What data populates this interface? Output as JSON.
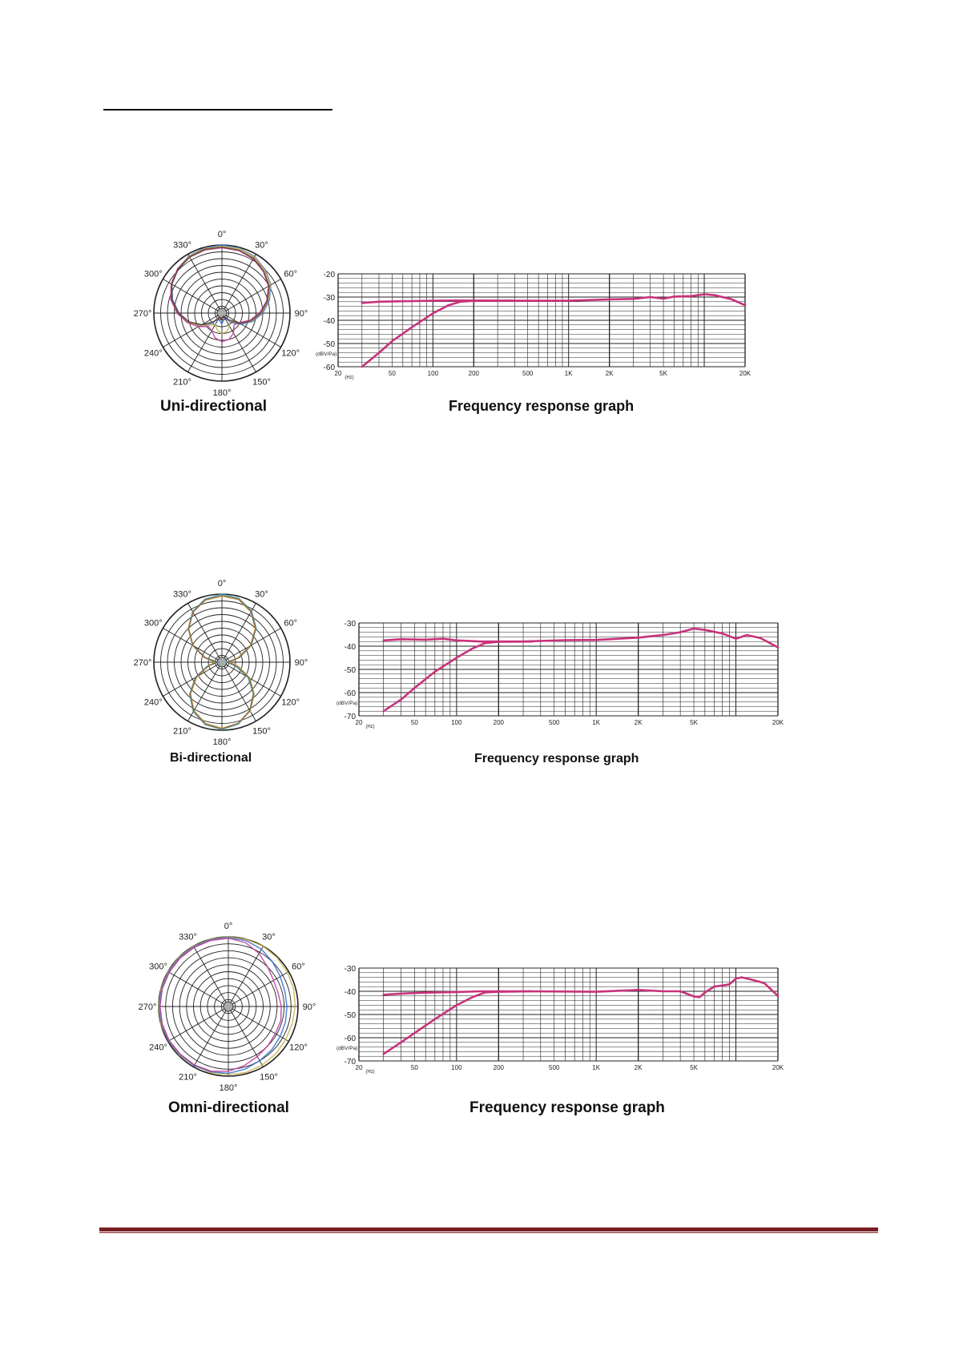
{
  "chart_data": [
    {
      "type": "polar",
      "caption": "Uni-directional",
      "angle_labels": [
        "0°",
        "30°",
        "60°",
        "90°",
        "120°",
        "150°",
        "180°",
        "210°",
        "240°",
        "270°",
        "300°",
        "330°"
      ],
      "series": [
        {
          "color": "#3a6fd0",
          "r": [
            1.0,
            0.99,
            0.96,
            0.9,
            0.83,
            0.72,
            0.6,
            0.47,
            0.33,
            0.2,
            0.08,
            0.1,
            0.16,
            0.12,
            0.1,
            0.22,
            0.36,
            0.5,
            0.63,
            0.75,
            0.85,
            0.92,
            0.97,
            0.99,
            1.0
          ]
        },
        {
          "color": "#c8b34a",
          "r": [
            0.98,
            0.98,
            0.95,
            0.89,
            0.82,
            0.7,
            0.58,
            0.45,
            0.3,
            0.16,
            0.22,
            0.28,
            0.3,
            0.26,
            0.2,
            0.25,
            0.38,
            0.52,
            0.65,
            0.77,
            0.86,
            0.92,
            0.96,
            0.98,
            0.98
          ]
        },
        {
          "color": "#c03a9c",
          "r": [
            0.96,
            0.95,
            0.92,
            0.86,
            0.79,
            0.68,
            0.55,
            0.42,
            0.28,
            0.25,
            0.34,
            0.4,
            0.42,
            0.38,
            0.3,
            0.28,
            0.4,
            0.53,
            0.66,
            0.78,
            0.86,
            0.92,
            0.95,
            0.96,
            0.96
          ]
        },
        {
          "color": "#5a3a20",
          "r": [
            0.97,
            0.96,
            0.93,
            0.87,
            0.8,
            0.69,
            0.57,
            0.44,
            0.3,
            0.14,
            0.05,
            0.06,
            0.1,
            0.08,
            0.07,
            0.18,
            0.34,
            0.5,
            0.64,
            0.76,
            0.85,
            0.91,
            0.95,
            0.97,
            0.97
          ]
        }
      ]
    },
    {
      "type": "line",
      "caption": "Frequency response graph",
      "y_ticks": [
        "-20",
        "-30",
        "-40",
        "-50",
        "-60"
      ],
      "ylim": [
        -60,
        -20
      ],
      "y_unit_label": "(dBV/Pa)",
      "x_unit_label": "(Hz)",
      "x_ticks": [
        {
          "f": 20,
          "label": "20"
        },
        {
          "f": 50,
          "label": "50"
        },
        {
          "f": 100,
          "label": "100"
        },
        {
          "f": 200,
          "label": "200"
        },
        {
          "f": 500,
          "label": "500"
        },
        {
          "f": 1000,
          "label": "1K"
        },
        {
          "f": 2000,
          "label": "2K"
        },
        {
          "f": 5000,
          "label": "5K"
        },
        {
          "f": 20000,
          "label": "20K"
        }
      ],
      "series": [
        {
          "points": [
            [
              30,
              -32.5
            ],
            [
              40,
              -32
            ],
            [
              60,
              -31.8
            ],
            [
              100,
              -31.6
            ],
            [
              150,
              -31.5
            ],
            [
              300,
              -31.6
            ],
            [
              1000,
              -31.6
            ],
            [
              2000,
              -31
            ],
            [
              3000,
              -30.8
            ],
            [
              4000,
              -30
            ],
            [
              5000,
              -30.7
            ],
            [
              6000,
              -29.8
            ],
            [
              8000,
              -29.6
            ],
            [
              10000,
              -28.8
            ],
            [
              12000,
              -29.2
            ],
            [
              16000,
              -31
            ],
            [
              20000,
              -33.5
            ]
          ]
        },
        {
          "points": [
            [
              30,
              -60
            ],
            [
              40,
              -54
            ],
            [
              50,
              -49
            ],
            [
              70,
              -43
            ],
            [
              100,
              -37
            ],
            [
              130,
              -33.5
            ],
            [
              160,
              -32
            ],
            [
              200,
              -31.6
            ],
            [
              400,
              -31.6
            ]
          ]
        }
      ]
    },
    {
      "type": "polar",
      "caption": "Bi-directional",
      "angle_labels": [
        "0°",
        "30°",
        "60°",
        "90°",
        "120°",
        "150°",
        "180°",
        "210°",
        "240°",
        "270°",
        "300°",
        "330°"
      ],
      "series": [
        {
          "color": "#34a6c4",
          "r": [
            1.0,
            0.97,
            0.87,
            0.71,
            0.5,
            0.27,
            0.07,
            0.2,
            0.44,
            0.65,
            0.82,
            0.94,
            0.99,
            0.95,
            0.84,
            0.67,
            0.45,
            0.22,
            0.05,
            0.25,
            0.49,
            0.7,
            0.86,
            0.96,
            1.0
          ]
        },
        {
          "color": "#c8b34a",
          "r": [
            0.97,
            0.95,
            0.85,
            0.69,
            0.48,
            0.24,
            0.12,
            0.26,
            0.48,
            0.67,
            0.83,
            0.93,
            0.97,
            0.93,
            0.82,
            0.65,
            0.42,
            0.2,
            0.1,
            0.27,
            0.5,
            0.7,
            0.85,
            0.94,
            0.97
          ]
        },
        {
          "color": "#8a5a3a",
          "r": [
            0.98,
            0.96,
            0.86,
            0.7,
            0.49,
            0.26,
            0.09,
            0.23,
            0.46,
            0.66,
            0.82,
            0.93,
            0.98,
            0.94,
            0.83,
            0.66,
            0.44,
            0.21,
            0.07,
            0.26,
            0.49,
            0.69,
            0.85,
            0.95,
            0.98
          ]
        }
      ]
    },
    {
      "type": "line",
      "caption": "Frequency response graph",
      "y_ticks": [
        "-30",
        "-40",
        "-50",
        "-60",
        "-70"
      ],
      "ylim": [
        -70,
        -30
      ],
      "y_unit_label": "(dBV/Pa)",
      "x_unit_label": "(Hz)",
      "x_ticks": [
        {
          "f": 20,
          "label": "20"
        },
        {
          "f": 50,
          "label": "50"
        },
        {
          "f": 100,
          "label": "100"
        },
        {
          "f": 200,
          "label": "200"
        },
        {
          "f": 500,
          "label": "500"
        },
        {
          "f": 1000,
          "label": "1K"
        },
        {
          "f": 2000,
          "label": "2K"
        },
        {
          "f": 5000,
          "label": "5K"
        },
        {
          "f": 20000,
          "label": "20K"
        }
      ],
      "series": [
        {
          "points": [
            [
              30,
              -37.5
            ],
            [
              40,
              -37
            ],
            [
              60,
              -37.2
            ],
            [
              80,
              -36.8
            ],
            [
              100,
              -37.5
            ],
            [
              150,
              -38
            ],
            [
              300,
              -38
            ],
            [
              600,
              -37.4
            ],
            [
              1000,
              -37.3
            ],
            [
              2000,
              -36.3
            ],
            [
              3000,
              -35.2
            ],
            [
              4000,
              -34
            ],
            [
              5000,
              -32.4
            ],
            [
              6000,
              -33
            ],
            [
              8000,
              -34.5
            ],
            [
              10000,
              -36.8
            ],
            [
              12000,
              -35.2
            ],
            [
              15000,
              -36.5
            ],
            [
              20000,
              -40.5
            ]
          ]
        },
        {
          "points": [
            [
              30,
              -68
            ],
            [
              40,
              -63
            ],
            [
              50,
              -58
            ],
            [
              70,
              -51
            ],
            [
              100,
              -45
            ],
            [
              130,
              -41
            ],
            [
              160,
              -38.7
            ],
            [
              200,
              -38.1
            ],
            [
              350,
              -38
            ]
          ]
        }
      ]
    },
    {
      "type": "polar",
      "caption": "Omni-directional",
      "angle_labels": [
        "0°",
        "30°",
        "60°",
        "90°",
        "120°",
        "150°",
        "180°",
        "210°",
        "240°",
        "270°",
        "300°",
        "330°"
      ],
      "series": [
        {
          "color": "#c8b34a",
          "r": [
            1.0,
            1.0,
            1.0,
            0.99,
            0.98,
            0.97,
            0.96,
            0.95,
            0.95,
            0.96,
            0.97,
            0.98,
            0.98,
            0.98,
            0.98,
            0.99,
            0.99,
            1.0,
            1.0,
            1.0,
            1.0,
            1.0,
            1.0,
            1.0,
            1.0
          ]
        },
        {
          "color": "#3a6fd0",
          "r": [
            0.99,
            0.98,
            0.95,
            0.9,
            0.86,
            0.84,
            0.84,
            0.85,
            0.86,
            0.88,
            0.9,
            0.93,
            0.96,
            0.97,
            0.98,
            0.98,
            0.99,
            0.99,
            0.99,
            0.99,
            0.99,
            0.99,
            0.99,
            0.99,
            0.99
          ]
        },
        {
          "color": "#c03a9c",
          "r": [
            0.98,
            0.95,
            0.88,
            0.8,
            0.75,
            0.74,
            0.76,
            0.78,
            0.78,
            0.8,
            0.83,
            0.88,
            0.93,
            0.96,
            0.97,
            0.97,
            0.98,
            0.98,
            0.98,
            0.98,
            0.98,
            0.98,
            0.98,
            0.98,
            0.98
          ]
        }
      ]
    },
    {
      "type": "line",
      "caption": "Frequency response graph",
      "y_ticks": [
        "-30",
        "-40",
        "-50",
        "-60",
        "-70"
      ],
      "ylim": [
        -70,
        -30
      ],
      "y_unit_label": "(dBV/Pa)",
      "x_unit_label": "(Hz)",
      "x_ticks": [
        {
          "f": 20,
          "label": "20"
        },
        {
          "f": 50,
          "label": "50"
        },
        {
          "f": 100,
          "label": "100"
        },
        {
          "f": 200,
          "label": "200"
        },
        {
          "f": 500,
          "label": "500"
        },
        {
          "f": 1000,
          "label": "1K"
        },
        {
          "f": 2000,
          "label": "2K"
        },
        {
          "f": 5000,
          "label": "5K"
        },
        {
          "f": 20000,
          "label": "20K"
        }
      ],
      "series": [
        {
          "points": [
            [
              30,
              -41.5
            ],
            [
              40,
              -41
            ],
            [
              60,
              -40.6
            ],
            [
              100,
              -40.3
            ],
            [
              150,
              -40
            ],
            [
              300,
              -40
            ],
            [
              1000,
              -40.2
            ],
            [
              2000,
              -39.4
            ],
            [
              3000,
              -40
            ],
            [
              4000,
              -40
            ],
            [
              5000,
              -42.2
            ],
            [
              5500,
              -42.5
            ],
            [
              6000,
              -40.5
            ],
            [
              7000,
              -38
            ],
            [
              8000,
              -37.5
            ],
            [
              9000,
              -37
            ],
            [
              10000,
              -34.5
            ],
            [
              11000,
              -34
            ],
            [
              13000,
              -35
            ],
            [
              16000,
              -36.5
            ],
            [
              20000,
              -42
            ]
          ]
        },
        {
          "points": [
            [
              30,
              -67
            ],
            [
              40,
              -62
            ],
            [
              50,
              -58
            ],
            [
              70,
              -52
            ],
            [
              100,
              -46
            ],
            [
              130,
              -42.5
            ],
            [
              160,
              -40.5
            ],
            [
              200,
              -40.2
            ],
            [
              350,
              -40
            ]
          ]
        }
      ]
    }
  ]
}
